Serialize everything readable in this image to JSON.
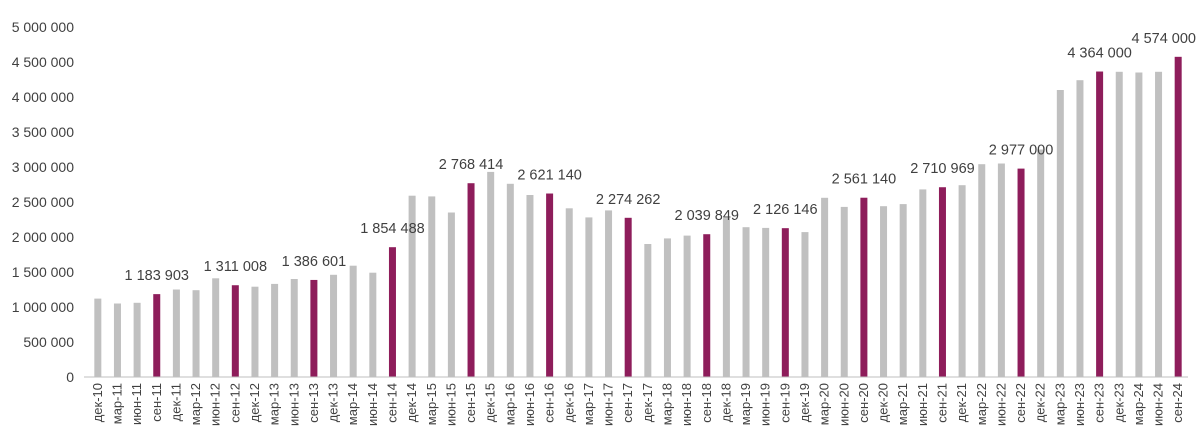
{
  "chart_data": {
    "type": "bar",
    "title": "",
    "xlabel": "",
    "ylabel": "",
    "ylim": [
      0,
      5000000
    ],
    "yticks": [
      0,
      500000,
      1000000,
      1500000,
      2000000,
      2500000,
      3000000,
      3500000,
      4000000,
      4500000,
      5000000
    ],
    "ytick_labels": [
      "0",
      "500 000",
      "1 000 000",
      "1 500 000",
      "2 000 000",
      "2 500 000",
      "3 000 000",
      "3 500 000",
      "4 000 000",
      "4 500 000",
      "5 000 000"
    ],
    "grid": false,
    "legend": "none",
    "colors": {
      "default": "#c0c0c0",
      "highlight": "#8e1d5b"
    },
    "categories": [
      "дек-10",
      "мар-11",
      "июн-11",
      "сен-11",
      "дек-11",
      "мар-12",
      "июн-12",
      "сен-12",
      "дек-12",
      "мар-13",
      "июн-13",
      "сен-13",
      "дек-13",
      "мар-14",
      "июн-14",
      "сен-14",
      "дек-14",
      "мар-15",
      "июн-15",
      "сен-15",
      "дек-15",
      "мар-16",
      "июн-16",
      "сен-16",
      "дек-16",
      "мар-17",
      "июн-17",
      "сен-17",
      "дек-17",
      "мар-18",
      "июн-18",
      "сен-18",
      "дек-18",
      "мар-19",
      "июн-19",
      "сен-19",
      "дек-19",
      "мар-20",
      "июн-20",
      "сен-20",
      "дек-20",
      "мар-21",
      "июн-21",
      "сен-21",
      "дек-21",
      "мар-22",
      "июн-22",
      "сен-22",
      "дек-22",
      "мар-23",
      "июн-23",
      "сен-23",
      "дек-23",
      "мар-24",
      "июн-24",
      "сен-24"
    ],
    "values": [
      1120000,
      1050000,
      1060000,
      1183903,
      1250000,
      1240000,
      1410000,
      1311008,
      1290000,
      1330000,
      1400000,
      1386601,
      1460000,
      1590000,
      1490000,
      1854488,
      2590000,
      2580000,
      2350000,
      2768414,
      2930000,
      2760000,
      2600000,
      2621140,
      2410000,
      2280000,
      2380000,
      2274262,
      1900000,
      1980000,
      2020000,
      2039849,
      2270000,
      2140000,
      2130000,
      2126146,
      2070000,
      2560000,
      2430000,
      2561140,
      2440000,
      2470000,
      2680000,
      2710969,
      2740000,
      3040000,
      3050000,
      2977000,
      3250000,
      4100000,
      4240000,
      4364000,
      4360000,
      4350000,
      4360000,
      4574000
    ],
    "highlighted": [
      false,
      false,
      false,
      true,
      false,
      false,
      false,
      true,
      false,
      false,
      false,
      true,
      false,
      false,
      false,
      true,
      false,
      false,
      false,
      true,
      false,
      false,
      false,
      true,
      false,
      false,
      false,
      true,
      false,
      false,
      false,
      true,
      false,
      false,
      false,
      true,
      false,
      false,
      false,
      true,
      false,
      false,
      false,
      true,
      false,
      false,
      false,
      true,
      false,
      false,
      false,
      true,
      false,
      false,
      false,
      true
    ],
    "data_labels": [
      {
        "category": "сен-11",
        "text": "1 183 903"
      },
      {
        "category": "сен-12",
        "text": "1 311 008"
      },
      {
        "category": "сен-13",
        "text": "1 386 601"
      },
      {
        "category": "сен-14",
        "text": "1 854 488"
      },
      {
        "category": "сен-15",
        "text": "2 768 414"
      },
      {
        "category": "сен-16",
        "text": "2 621 140"
      },
      {
        "category": "сен-17",
        "text": "2 274 262"
      },
      {
        "category": "сен-18",
        "text": "2 039 849"
      },
      {
        "category": "сен-19",
        "text": "2 126 146"
      },
      {
        "category": "сен-20",
        "text": "2 561 140"
      },
      {
        "category": "сен-21",
        "text": "2 710 969"
      },
      {
        "category": "сен-22",
        "text": "2 977 000"
      },
      {
        "category": "сен-23",
        "text": "4 364 000"
      },
      {
        "category": "сен-24",
        "text": "4 574 000"
      }
    ]
  }
}
